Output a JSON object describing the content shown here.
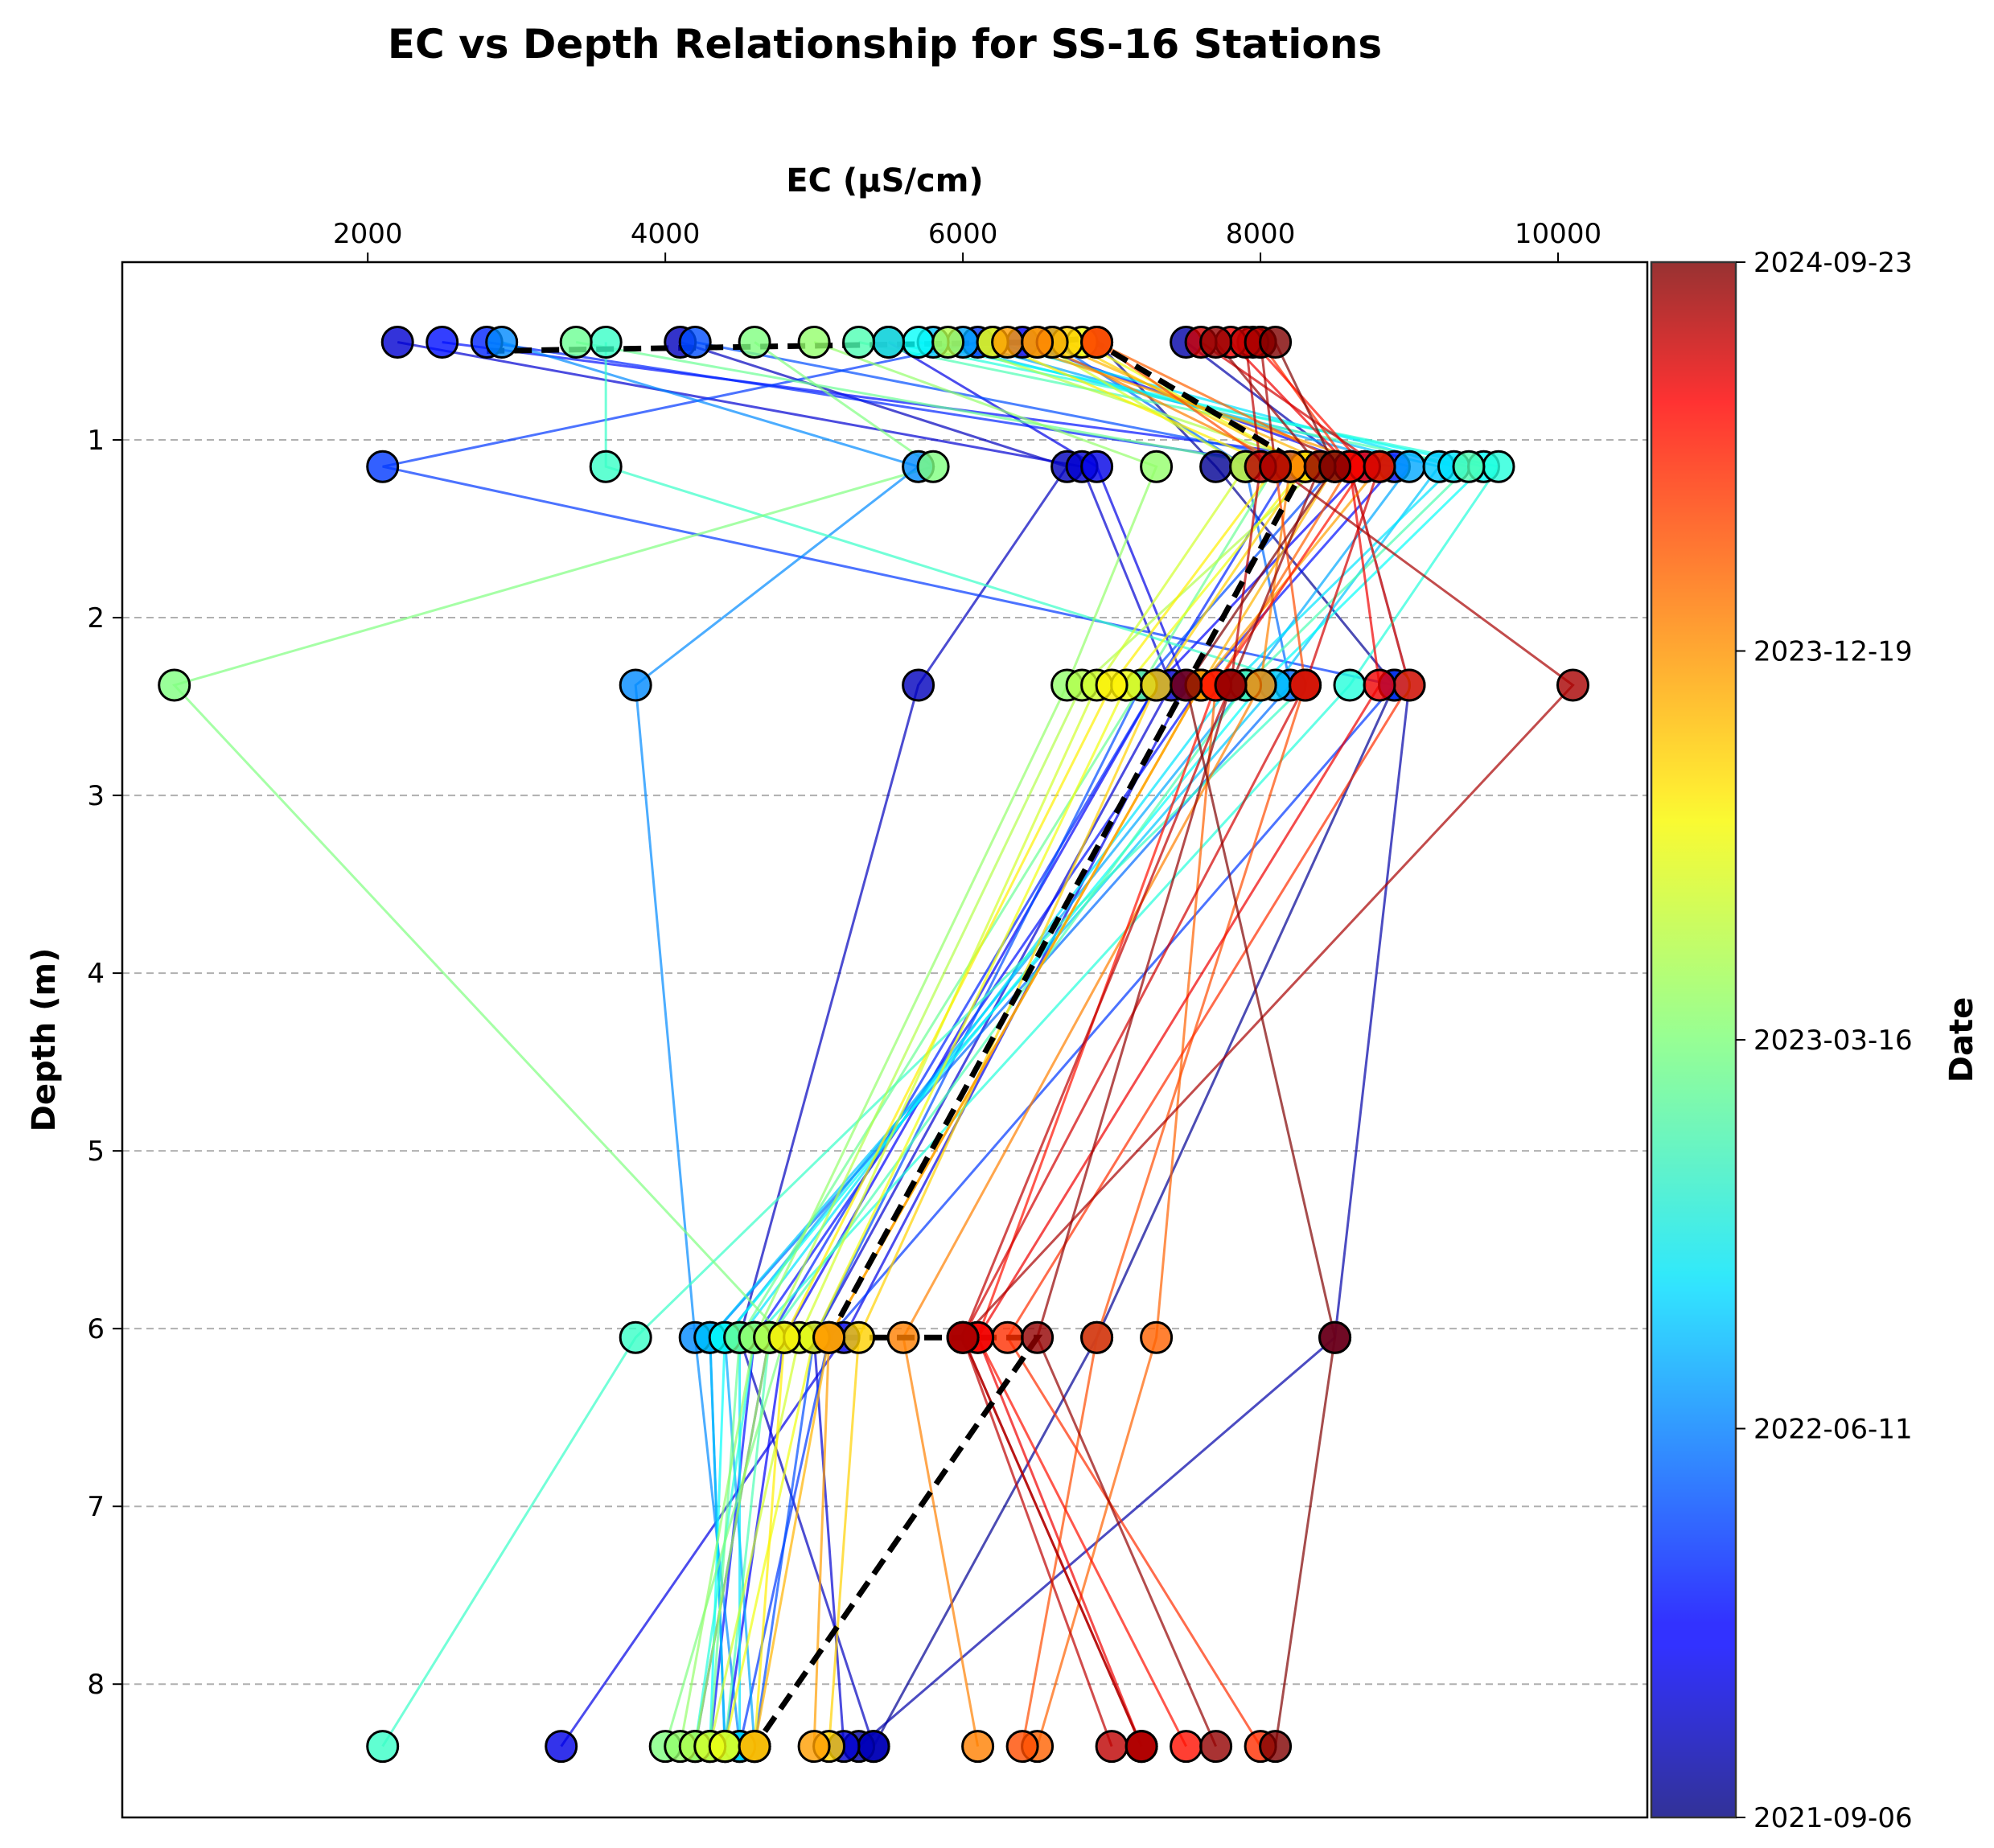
{
  "chart_data": {
    "type": "scatter",
    "title": "EC vs Depth Relationship for SS-16 Stations",
    "xlabel": "EC (µS/cm)",
    "ylabel": "Depth (m)",
    "x_axis_position": "top",
    "xlim": [
      350,
      10600
    ],
    "ylim": [
      8.75,
      0
    ],
    "y_inverted": true,
    "x_ticks": [
      2000,
      4000,
      6000,
      8000,
      10000
    ],
    "y_ticks": [
      1,
      2,
      3,
      4,
      5,
      6,
      7,
      8
    ],
    "grid": "horizontal dashed",
    "colormap": "jet",
    "colorbar": {
      "label": "Date",
      "min_date": "2021-09-06",
      "max_date": "2024-09-23",
      "tick_labels": [
        "2021-09-06",
        "2022-06-11",
        "2023-03-16",
        "2023-12-19",
        "2024-09-23"
      ]
    },
    "depths": [
      0.45,
      1.15,
      2.38,
      6.05,
      8.35
    ],
    "mean_profile": {
      "style": "black dashed",
      "ec": [
        2800,
        8000,
        7400,
        5100,
        4600
      ],
      "sample_points": [
        [
          2800,
          0.5
        ],
        [
          6500,
          0.45
        ],
        [
          6850,
          0.43
        ],
        [
          8300,
          1.15
        ],
        [
          7500,
          2.38
        ],
        [
          5100,
          6.05
        ],
        [
          6500,
          6.05
        ],
        [
          4600,
          8.35
        ]
      ]
    },
    "profiles": [
      {
        "t": 0.02,
        "ec": [
          6900,
          7700,
          8900,
          6900,
          5400
        ]
      },
      {
        "t": 0.04,
        "ec": [
          7500,
          8600,
          9000,
          8500,
          5300
        ]
      },
      {
        "t": 0.06,
        "ec": [
          4100,
          6700,
          5700,
          4500,
          5400
        ]
      },
      {
        "t": 0.08,
        "ec": [
          2200,
          6800,
          7400,
          5000,
          5200
        ]
      },
      {
        "t": 0.1,
        "ec": [
          5500,
          6900,
          7500,
          5200,
          3300
        ]
      },
      {
        "t": 0.12,
        "ec": [
          6400,
          8700,
          7300,
          4800,
          4400
        ]
      },
      {
        "t": 0.14,
        "ec": [
          2500,
          8900,
          7600,
          4600,
          4300
        ]
      },
      {
        "t": 0.16,
        "ec": [
          2800,
          8200,
          7300,
          4700,
          4200
        ]
      },
      {
        "t": 0.18,
        "ec": [
          6100,
          2100,
          8900,
          5100,
          4500
        ]
      },
      {
        "t": 0.2,
        "ec": [
          4200,
          8500,
          7200,
          5000,
          4600
        ]
      },
      {
        "t": 0.23,
        "ec": [
          6600,
          7900,
          8200,
          4300,
          4400
        ]
      },
      {
        "t": 0.26,
        "ec": [
          2900,
          5700,
          3800,
          4200,
          4500
        ]
      },
      {
        "t": 0.29,
        "ec": [
          6000,
          9000,
          7900,
          4400,
          4600
        ]
      },
      {
        "t": 0.32,
        "ec": [
          5800,
          9200,
          8100,
          4300,
          4400
        ]
      },
      {
        "t": 0.35,
        "ec": [
          6200,
          9300,
          7800,
          4500,
          4500
        ]
      },
      {
        "t": 0.38,
        "ec": [
          5700,
          9500,
          8000,
          4400,
          4300
        ]
      },
      {
        "t": 0.41,
        "ec": [
          5500,
          9600,
          8600,
          4600,
          4200
        ]
      },
      {
        "t": 0.43,
        "ec": [
          3600,
          3600,
          8300,
          3800,
          2100
        ]
      },
      {
        "t": 0.45,
        "ec": [
          5300,
          9400,
          7900,
          4700,
          4400
        ]
      },
      {
        "t": 0.48,
        "ec": [
          3400,
          8100,
          7200,
          4500,
          4300
        ]
      },
      {
        "t": 0.5,
        "ec": [
          4600,
          5800,
          700,
          4800,
          4000
        ]
      },
      {
        "t": 0.52,
        "ec": [
          5000,
          7300,
          6700,
          4600,
          4100
        ]
      },
      {
        "t": 0.55,
        "ec": [
          5900,
          8400,
          6800,
          4700,
          4200
        ]
      },
      {
        "t": 0.58,
        "ec": [
          6500,
          7900,
          6900,
          4900,
          4300
        ]
      },
      {
        "t": 0.61,
        "ec": [
          6800,
          8300,
          7100,
          5000,
          4400
        ]
      },
      {
        "t": 0.64,
        "ec": [
          6200,
          8100,
          7000,
          4800,
          4600
        ]
      },
      {
        "t": 0.67,
        "ec": [
          6700,
          8300,
          7300,
          5300,
          5100
        ]
      },
      {
        "t": 0.7,
        "ec": [
          6600,
          8500,
          7600,
          5100,
          4600
        ]
      },
      {
        "t": 0.72,
        "ec": [
          6300,
          8800,
          7600,
          5100,
          5000
        ]
      },
      {
        "t": 0.75,
        "ec": [
          6500,
          8200,
          8000,
          5600,
          6100
        ]
      },
      {
        "t": 0.78,
        "ec": [
          6900,
          8600,
          7700,
          7300,
          6500
        ]
      },
      {
        "t": 0.8,
        "ec": [
          6900,
          8100,
          8300,
          6900,
          6400
        ]
      },
      {
        "t": 0.83,
        "ec": [
          8000,
          8600,
          9000,
          6300,
          8000
        ]
      },
      {
        "t": 0.86,
        "ec": [
          7950,
          8700,
          7700,
          6100,
          7500
        ]
      },
      {
        "t": 0.89,
        "ec": [
          7800,
          8600,
          8800,
          6100,
          7200
        ]
      },
      {
        "t": 0.92,
        "ec": [
          7600,
          8800,
          8300,
          6000,
          7200
        ]
      },
      {
        "t": 0.94,
        "ec": [
          7900,
          8000,
          7800,
          6000,
          7000
        ]
      },
      {
        "t": 0.96,
        "ec": [
          8000,
          8100,
          10100,
          6000,
          7200
        ]
      },
      {
        "t": 0.98,
        "ec": [
          7700,
          8400,
          7800,
          6500,
          7700
        ]
      },
      {
        "t": 1.0,
        "ec": [
          8100,
          8500,
          7500,
          8500,
          8100
        ]
      }
    ]
  }
}
